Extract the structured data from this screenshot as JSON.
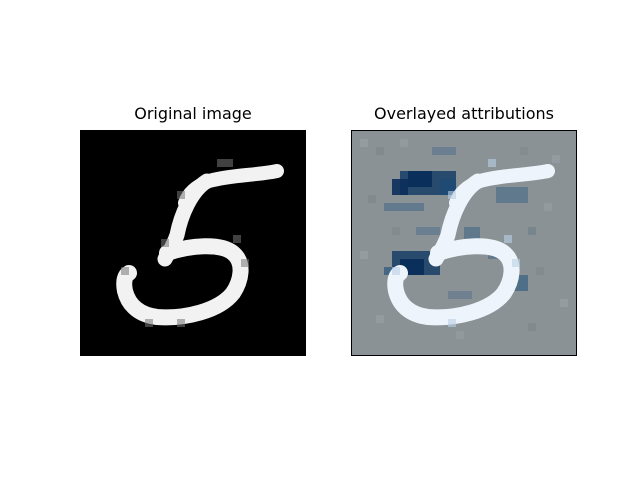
{
  "figure": {
    "left_title": "Original image",
    "right_title": "Overlayed attributions"
  },
  "colors": {
    "background": "#ffffff",
    "original_background": "#000000",
    "digit_stroke": "#f2f2f2",
    "overlay_background": "#8a9296",
    "attribution_positive": "#0a2f5a",
    "attribution_digit": "#eef4fb"
  },
  "images": {
    "left": {
      "content": "handwritten-digit-5",
      "style": "grayscale"
    },
    "right": {
      "content": "handwritten-digit-5-with-attribution-overlay",
      "style": "blue-overlay"
    }
  }
}
